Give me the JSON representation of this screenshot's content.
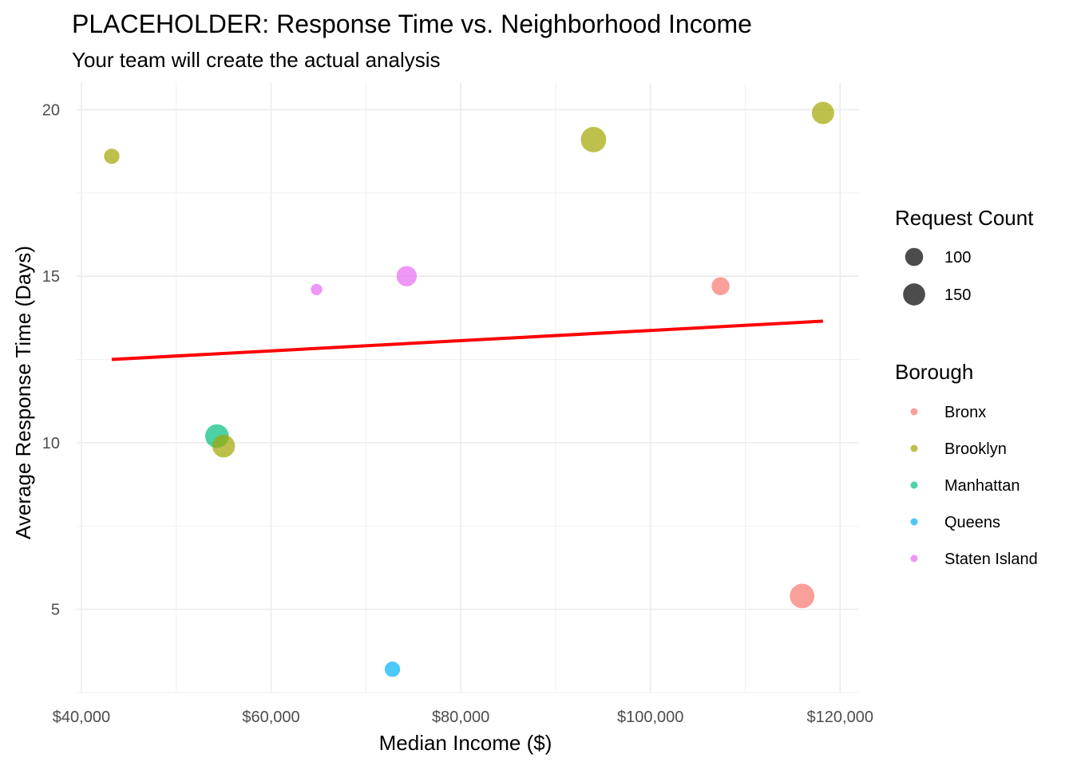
{
  "chart_data": {
    "type": "scatter",
    "title": "PLACEHOLDER: Response Time vs. Neighborhood Income",
    "subtitle": "Your team will create the actual analysis",
    "xlabel": "Median Income ($)",
    "ylabel": "Average Response Time (Days)",
    "xlim": [
      39500,
      122000
    ],
    "ylim": [
      2.5,
      20.8
    ],
    "x_ticks": [
      40000,
      60000,
      80000,
      100000,
      120000
    ],
    "x_tick_labels": [
      "$40,000",
      "$60,000",
      "$80,000",
      "$100,000",
      "$120,000"
    ],
    "y_ticks": [
      5,
      10,
      15,
      20
    ],
    "y_tick_labels": [
      "5",
      "10",
      "15",
      "20"
    ],
    "grid": true,
    "legend_placement": "right",
    "size_legend": {
      "title": "Request Count",
      "entries": [
        {
          "label": "100",
          "count": 100
        },
        {
          "label": "150",
          "count": 150
        }
      ]
    },
    "color_legend": {
      "title": "Borough",
      "entries": [
        {
          "label": "Bronx",
          "color": "#F8766D"
        },
        {
          "label": "Brooklyn",
          "color": "#A3A500"
        },
        {
          "label": "Manhattan",
          "color": "#00BF7D"
        },
        {
          "label": "Queens",
          "color": "#00B0F6"
        },
        {
          "label": "Staten Island",
          "color": "#E76BF3"
        }
      ]
    },
    "points": [
      {
        "borough": "Brooklyn",
        "income": 43200,
        "response": 18.6,
        "count": 55
      },
      {
        "borough": "Brooklyn",
        "income": 94000,
        "response": 19.1,
        "count": 150
      },
      {
        "borough": "Brooklyn",
        "income": 118200,
        "response": 19.9,
        "count": 115
      },
      {
        "borough": "Staten Island",
        "income": 64800,
        "response": 14.6,
        "count": 30
      },
      {
        "borough": "Staten Island",
        "income": 74300,
        "response": 15.0,
        "count": 95
      },
      {
        "borough": "Bronx",
        "income": 107400,
        "response": 14.7,
        "count": 75
      },
      {
        "borough": "Manhattan",
        "income": 54300,
        "response": 10.2,
        "count": 130
      },
      {
        "borough": "Brooklyn",
        "income": 55000,
        "response": 9.9,
        "count": 120
      },
      {
        "borough": "Bronx",
        "income": 116000,
        "response": 5.4,
        "count": 140
      },
      {
        "borough": "Queens",
        "income": 72800,
        "response": 3.2,
        "count": 55
      }
    ],
    "trend_line": {
      "color": "#FF0000",
      "start": {
        "x": 43200,
        "y": 12.5
      },
      "end": {
        "x": 118200,
        "y": 13.65
      }
    }
  }
}
